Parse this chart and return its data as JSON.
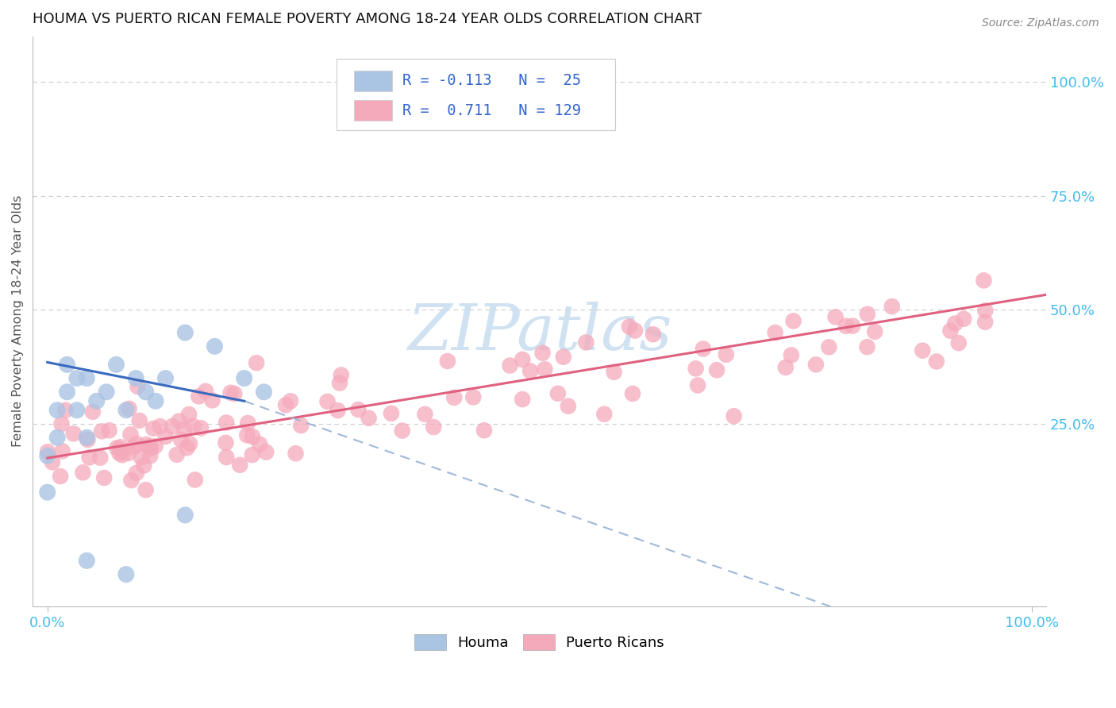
{
  "title": "HOUMA VS PUERTO RICAN FEMALE POVERTY AMONG 18-24 YEAR OLDS CORRELATION CHART",
  "source": "Source: ZipAtlas.com",
  "ylabel": "Female Poverty Among 18-24 Year Olds",
  "houma_R": -0.113,
  "houma_N": 25,
  "pr_R": 0.711,
  "pr_N": 129,
  "houma_color": "#aac4e4",
  "pr_color": "#f5aabb",
  "houma_line_color": "#3a6abf",
  "houma_line_dash_color": "#a0b8d8",
  "pr_line_color": "#e06080",
  "legend_text_color": "#3366cc",
  "watermark_color": "#c8ddf0",
  "title_color": "#111111",
  "source_color": "#888888",
  "axis_label_color": "#555555",
  "right_ytick_color": "#44bbee",
  "bottom_xtick_color": "#44bbee",
  "grid_color": "#cccccc",
  "background_color": "#ffffff",
  "xlim": [
    -0.015,
    1.015
  ],
  "ylim": [
    -0.15,
    1.1
  ],
  "ytick_vals": [
    0.25,
    0.5,
    0.75,
    1.0
  ],
  "ytick_labels": [
    "25.0%",
    "50.0%",
    "75.0%",
    "100.0%"
  ],
  "xtick_vals": [
    0.0,
    1.0
  ],
  "xtick_labels": [
    "0.0%",
    "100.0%"
  ]
}
